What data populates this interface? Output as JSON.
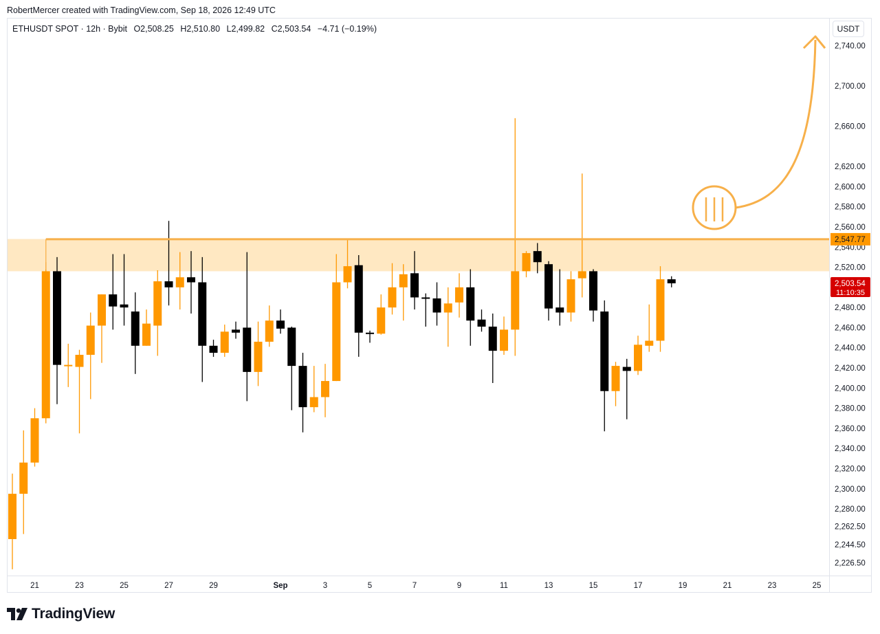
{
  "credit": "RobertMercer created with TradingView.com, Sep 18, 2026 12:49 UTC",
  "legend": {
    "symbol": "ETHUSDT SPOT · 12h · Bybit",
    "o_key": "O",
    "o_val": "2,508.25",
    "h_key": "H",
    "h_val": "2,510.80",
    "l_key": "L",
    "l_val": "2,499.82",
    "c_key": "C",
    "c_val": "2,503.54",
    "change": "−4.71 (−0.19%)"
  },
  "currency": "USDT",
  "brand": "TradingView",
  "colors": {
    "up": "#ff9800",
    "down": "#000000",
    "zone": "#ffe8c2",
    "line": "#f7b04a",
    "price_badge": "#d50000",
    "level_badge": "#ff9800"
  },
  "chart_data": {
    "type": "candlestick",
    "y_axis": {
      "min": 2215,
      "max": 2760,
      "ticks": [
        "2,740.00",
        "2,700.00",
        "2,660.00",
        "2,620.00",
        "2,600.00",
        "2,580.00",
        "2,560.00",
        "2,540.00",
        "2,520.00",
        "2,500.00",
        "2,480.00",
        "2,460.00",
        "2,440.00",
        "2,420.00",
        "2,400.00",
        "2,380.00",
        "2,360.00",
        "2,340.00",
        "2,320.00",
        "2,300.00",
        "2,280.00",
        "2,262.50",
        "2,244.50",
        "2,226.50"
      ],
      "tick_values": [
        2740,
        2700,
        2660,
        2620,
        2600,
        2580,
        2560,
        2540,
        2520,
        2500,
        2480,
        2460,
        2440,
        2420,
        2400,
        2380,
        2360,
        2340,
        2320,
        2300,
        2280,
        2262.5,
        2244.5,
        2226.5
      ]
    },
    "x_axis": {
      "labels": [
        "21",
        "23",
        "25",
        "27",
        "29",
        "Sep",
        "3",
        "5",
        "7",
        "9",
        "11",
        "13",
        "15",
        "17",
        "19",
        "21",
        "23",
        "25"
      ],
      "label_candle_index": [
        2,
        6,
        10,
        14,
        18,
        24,
        28,
        32,
        36,
        40,
        44,
        48,
        52,
        56,
        60,
        64,
        68,
        72
      ]
    },
    "candles": [
      {
        "o": 2250,
        "h": 2315,
        "l": 2220,
        "c": 2295
      },
      {
        "o": 2295,
        "h": 2358,
        "l": 2255,
        "c": 2326
      },
      {
        "o": 2326,
        "h": 2380,
        "l": 2322,
        "c": 2370
      },
      {
        "o": 2370,
        "h": 2525,
        "l": 2365,
        "c": 2516
      },
      {
        "o": 2516,
        "h": 2530,
        "l": 2384,
        "c": 2423
      },
      {
        "o": 2423,
        "h": 2444,
        "l": 2401,
        "c": 2423
      },
      {
        "o": 2421,
        "h": 2438,
        "l": 2355,
        "c": 2433
      },
      {
        "o": 2433,
        "h": 2475,
        "l": 2389,
        "c": 2462
      },
      {
        "o": 2462,
        "h": 2493,
        "l": 2425,
        "c": 2493
      },
      {
        "o": 2493,
        "h": 2533,
        "l": 2458,
        "c": 2481
      },
      {
        "o": 2483,
        "h": 2533,
        "l": 2462,
        "c": 2480
      },
      {
        "o": 2476,
        "h": 2495,
        "l": 2414,
        "c": 2442
      },
      {
        "o": 2442,
        "h": 2478,
        "l": 2442,
        "c": 2464
      },
      {
        "o": 2462,
        "h": 2517,
        "l": 2432,
        "c": 2506
      },
      {
        "o": 2506,
        "h": 2566,
        "l": 2482,
        "c": 2500
      },
      {
        "o": 2500,
        "h": 2535,
        "l": 2478,
        "c": 2510
      },
      {
        "o": 2510,
        "h": 2536,
        "l": 2474,
        "c": 2505
      },
      {
        "o": 2505,
        "h": 2530,
        "l": 2406,
        "c": 2442
      },
      {
        "o": 2442,
        "h": 2448,
        "l": 2431,
        "c": 2435
      },
      {
        "o": 2435,
        "h": 2463,
        "l": 2431,
        "c": 2456
      },
      {
        "o": 2458,
        "h": 2466,
        "l": 2449,
        "c": 2455
      },
      {
        "o": 2460,
        "h": 2535,
        "l": 2387,
        "c": 2416
      },
      {
        "o": 2416,
        "h": 2466,
        "l": 2402,
        "c": 2446
      },
      {
        "o": 2446,
        "h": 2482,
        "l": 2441,
        "c": 2467
      },
      {
        "o": 2467,
        "h": 2478,
        "l": 2454,
        "c": 2459
      },
      {
        "o": 2460,
        "h": 2461,
        "l": 2378,
        "c": 2422
      },
      {
        "o": 2422,
        "h": 2435,
        "l": 2356,
        "c": 2381
      },
      {
        "o": 2381,
        "h": 2422,
        "l": 2376,
        "c": 2391
      },
      {
        "o": 2391,
        "h": 2424,
        "l": 2371,
        "c": 2407
      },
      {
        "o": 2407,
        "h": 2533,
        "l": 2407,
        "c": 2505
      },
      {
        "o": 2505,
        "h": 2548,
        "l": 2499,
        "c": 2521
      },
      {
        "o": 2522,
        "h": 2532,
        "l": 2431,
        "c": 2455
      },
      {
        "o": 2455,
        "h": 2457,
        "l": 2445,
        "c": 2454
      },
      {
        "o": 2454,
        "h": 2493,
        "l": 2453,
        "c": 2480
      },
      {
        "o": 2480,
        "h": 2524,
        "l": 2473,
        "c": 2500
      },
      {
        "o": 2500,
        "h": 2523,
        "l": 2467,
        "c": 2513
      },
      {
        "o": 2514,
        "h": 2536,
        "l": 2478,
        "c": 2490
      },
      {
        "o": 2490,
        "h": 2494,
        "l": 2461,
        "c": 2489
      },
      {
        "o": 2489,
        "h": 2505,
        "l": 2462,
        "c": 2475
      },
      {
        "o": 2475,
        "h": 2500,
        "l": 2441,
        "c": 2484
      },
      {
        "o": 2485,
        "h": 2514,
        "l": 2470,
        "c": 2500
      },
      {
        "o": 2500,
        "h": 2518,
        "l": 2442,
        "c": 2467
      },
      {
        "o": 2468,
        "h": 2478,
        "l": 2456,
        "c": 2461
      },
      {
        "o": 2461,
        "h": 2474,
        "l": 2405,
        "c": 2437
      },
      {
        "o": 2437,
        "h": 2471,
        "l": 2433,
        "c": 2458
      },
      {
        "o": 2458,
        "h": 2668,
        "l": 2432,
        "c": 2516
      },
      {
        "o": 2516,
        "h": 2536,
        "l": 2510,
        "c": 2534
      },
      {
        "o": 2536,
        "h": 2544,
        "l": 2514,
        "c": 2525
      },
      {
        "o": 2523,
        "h": 2526,
        "l": 2467,
        "c": 2479
      },
      {
        "o": 2480,
        "h": 2518,
        "l": 2462,
        "c": 2475
      },
      {
        "o": 2475,
        "h": 2516,
        "l": 2466,
        "c": 2508
      },
      {
        "o": 2509,
        "h": 2613,
        "l": 2490,
        "c": 2516
      },
      {
        "o": 2516,
        "h": 2518,
        "l": 2466,
        "c": 2477
      },
      {
        "o": 2476,
        "h": 2487,
        "l": 2357,
        "c": 2397
      },
      {
        "o": 2397,
        "h": 2426,
        "l": 2382,
        "c": 2422
      },
      {
        "o": 2421,
        "h": 2429,
        "l": 2369,
        "c": 2417
      },
      {
        "o": 2417,
        "h": 2452,
        "l": 2413,
        "c": 2443
      },
      {
        "o": 2442,
        "h": 2483,
        "l": 2436,
        "c": 2447
      },
      {
        "o": 2447,
        "h": 2521,
        "l": 2436,
        "c": 2508
      },
      {
        "o": 2508,
        "h": 2511,
        "l": 2500,
        "c": 2504
      }
    ],
    "annotations": {
      "resistance_zone": {
        "low": 2516,
        "high": 2548
      },
      "resistance_line": 2547.77,
      "resistance_label": "2,547.77",
      "last_price_label": "2,503.54",
      "countdown_label": "11:10:35"
    }
  }
}
